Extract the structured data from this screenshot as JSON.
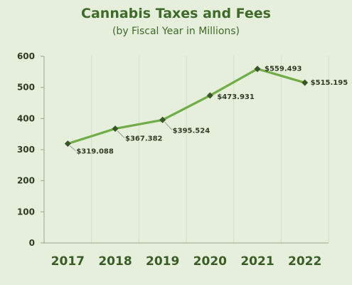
{
  "chart_data": {
    "type": "line",
    "title": "Cannabis Taxes and Fees",
    "subtitle": "(by Fiscal Year in Millions)",
    "categories": [
      "2017",
      "2018",
      "2019",
      "2020",
      "2021",
      "2022"
    ],
    "series": [
      {
        "values": [
          319.088,
          367.382,
          395.524,
          473.931,
          559.493,
          515.195
        ],
        "labels": [
          "$319.088",
          "$367.382",
          "$395.524",
          "$473.931",
          "$559.493",
          "$515.195"
        ]
      }
    ],
    "ylim": [
      0,
      600
    ],
    "yticks": [
      "0",
      "100",
      "200",
      "300",
      "400",
      "500",
      "600"
    ],
    "grid": "vertical",
    "colors": {
      "line": "#70ad47",
      "marker": "#375623",
      "background": "#e6efdc"
    }
  }
}
